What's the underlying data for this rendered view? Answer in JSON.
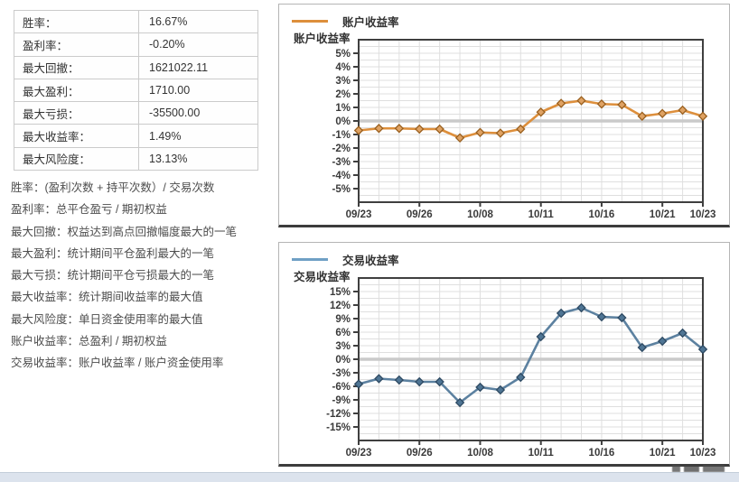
{
  "stats_table": {
    "rows": [
      {
        "label": "胜率：",
        "value": "16.67%"
      },
      {
        "label": "盈利率：",
        "value": "-0.20%"
      },
      {
        "label": "最大回撤：",
        "value": "1621022.11"
      },
      {
        "label": "最大盈利：",
        "value": "1710.00"
      },
      {
        "label": "最大亏损：",
        "value": "-35500.00"
      },
      {
        "label": "最大收益率：",
        "value": "1.49%"
      },
      {
        "label": "最大风险度：",
        "value": "13.13%"
      }
    ]
  },
  "notes": [
    "胜率：(盈利次数 + 持平次数）/ 交易次数",
    "盈利率：总平仓盈亏 / 期初权益",
    "最大回撤：权益达到高点回撤幅度最大的一笔",
    "最大盈利：统计期间平仓盈利最大的一笔",
    "最大亏损：统计期间平仓亏损最大的一笔",
    "最大收益率：统计期间收益率的最大值",
    "最大风险度：单日资金使用率的最大值",
    "账户收益率：总盈利 / 期初权益",
    "交易收益率：账户收益率 / 账户资金使用率"
  ],
  "chart_data": [
    {
      "type": "line",
      "legend": "账户收益率",
      "y_axis_title": "账户收益率",
      "n_points": 18,
      "values": [
        -0.7,
        -0.55,
        -0.55,
        -0.6,
        -0.6,
        -1.25,
        -0.85,
        -0.9,
        -0.6,
        0.65,
        1.3,
        1.5,
        1.25,
        1.2,
        0.35,
        0.55,
        0.8,
        0.35
      ],
      "x_tick_positions": [
        0,
        3,
        6,
        9,
        12,
        15,
        17
      ],
      "x_tick_labels": [
        "09/23",
        "09/26",
        "10/08",
        "10/11",
        "10/16",
        "10/21",
        "10/23"
      ],
      "y_ticks": [
        5,
        4,
        3,
        2,
        1,
        0,
        -1,
        -2,
        -3,
        -4,
        -5
      ],
      "y_tick_labels": [
        "5%",
        "4%",
        "3%",
        "2%",
        "1%",
        "0%",
        "-1%",
        "-2%",
        "-3%",
        "-4%",
        "-5%"
      ],
      "ylim": [
        -6,
        6
      ],
      "y_minor_step": 0.5,
      "unit": "%",
      "grid": true,
      "legend_position": "top-left",
      "line_color": "#DD8F3C",
      "marker_fill": "#DFA263",
      "marker_stroke": "#9A601F",
      "legend_color": "#DD8F3C"
    },
    {
      "type": "line",
      "legend": "交易收益率",
      "y_axis_title": "交易收益率",
      "n_points": 18,
      "values": [
        -5.5,
        -4.3,
        -4.6,
        -5.0,
        -5.0,
        -9.6,
        -6.2,
        -6.8,
        -4.0,
        5.0,
        10.2,
        11.4,
        9.4,
        9.2,
        2.6,
        4.0,
        5.8,
        2.2
      ],
      "x_tick_positions": [
        0,
        3,
        6,
        9,
        12,
        15,
        17
      ],
      "x_tick_labels": [
        "09/23",
        "09/26",
        "10/08",
        "10/11",
        "10/16",
        "10/21",
        "10/23"
      ],
      "y_ticks": [
        15,
        12,
        9,
        6,
        3,
        0,
        -3,
        -6,
        -9,
        -12,
        -15
      ],
      "y_tick_labels": [
        "15%",
        "12%",
        "9%",
        "6%",
        "3%",
        "0%",
        "-3%",
        "-6%",
        "-9%",
        "-12%",
        "-15%"
      ],
      "ylim": [
        -18,
        18
      ],
      "y_minor_step": 1.5,
      "unit": "%",
      "grid": true,
      "legend_position": "top-left",
      "line_color": "#5C81A0",
      "marker_fill": "#4F7594",
      "marker_stroke": "#2E4A63",
      "legend_color": "#6FA0C5"
    }
  ],
  "colors": {
    "plot_frame": "#3f3f3f",
    "gridline": "#dfdfdf",
    "zero_line": "#cacaca",
    "tick_label": "#3a3a3a",
    "table_border": "#cbcbcb",
    "footer_bar": "#dce3ed"
  }
}
